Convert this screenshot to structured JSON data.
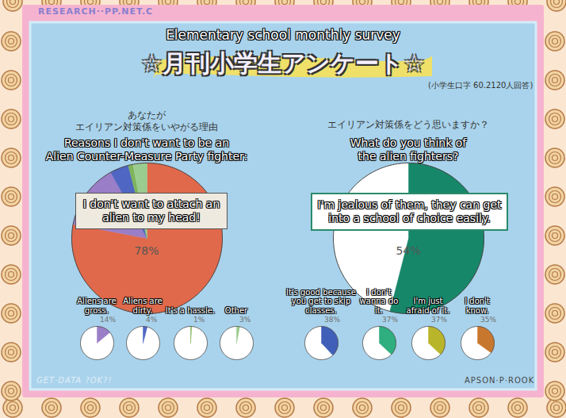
{
  "header": {
    "site": "RESEARCH··PP.NET.C",
    "title": "Elementary school monthly survey",
    "title_ja": "☆月刊小学生アンケート☆",
    "note_ja": "(小学生口字 60.2120人回答)"
  },
  "chart_data": [
    {
      "type": "pie",
      "title_ja": "あなたが\nエイリアン対策係をいやがる理由",
      "title": "Reasons I don't want to be an\nAlien Counter-Measure Party fighter:",
      "categories": [
        "I don't want to attach an alien to my head!",
        "Aliens are gross.",
        "Aliens are dirty.",
        "It's a hassle.",
        "Other"
      ],
      "values": [
        78,
        14,
        4,
        1,
        3
      ],
      "value_labels": [
        "78%",
        "14%",
        "4%",
        "1%",
        "3%"
      ],
      "colors": [
        "#e0694b",
        "#9b7ec8",
        "#4f67c2",
        "#7fb35a",
        "#9acb8f"
      ]
    },
    {
      "type": "pie",
      "title_ja": "エイリアン対策係をどう思いますか？",
      "title": "What do you think of\nthe alien fighters?",
      "categories": [
        "I'm jealous of them, they can get into a school of choice easily."
      ],
      "values": [
        54
      ],
      "value_labels": [
        "54%"
      ],
      "colors": [
        "#17876a"
      ],
      "small_pies": [
        {
          "label": "It's good because you get to skip classes.",
          "value": 38,
          "value_label": "38%",
          "color": "#3f5fb8"
        },
        {
          "label": "I don't wanna do it.",
          "value": 37,
          "value_label": "37%",
          "color": "#2fae7f"
        },
        {
          "label": "I'm just afraid of it.",
          "value": 37,
          "value_label": "37%",
          "color": "#b9b52a"
        },
        {
          "label": "I don't know.",
          "value": 35,
          "value_label": "35%",
          "color": "#c8772e"
        }
      ]
    }
  ],
  "footer": {
    "left": "GET·DATA ?OK?!",
    "right": "APSON·P·ROOK"
  }
}
